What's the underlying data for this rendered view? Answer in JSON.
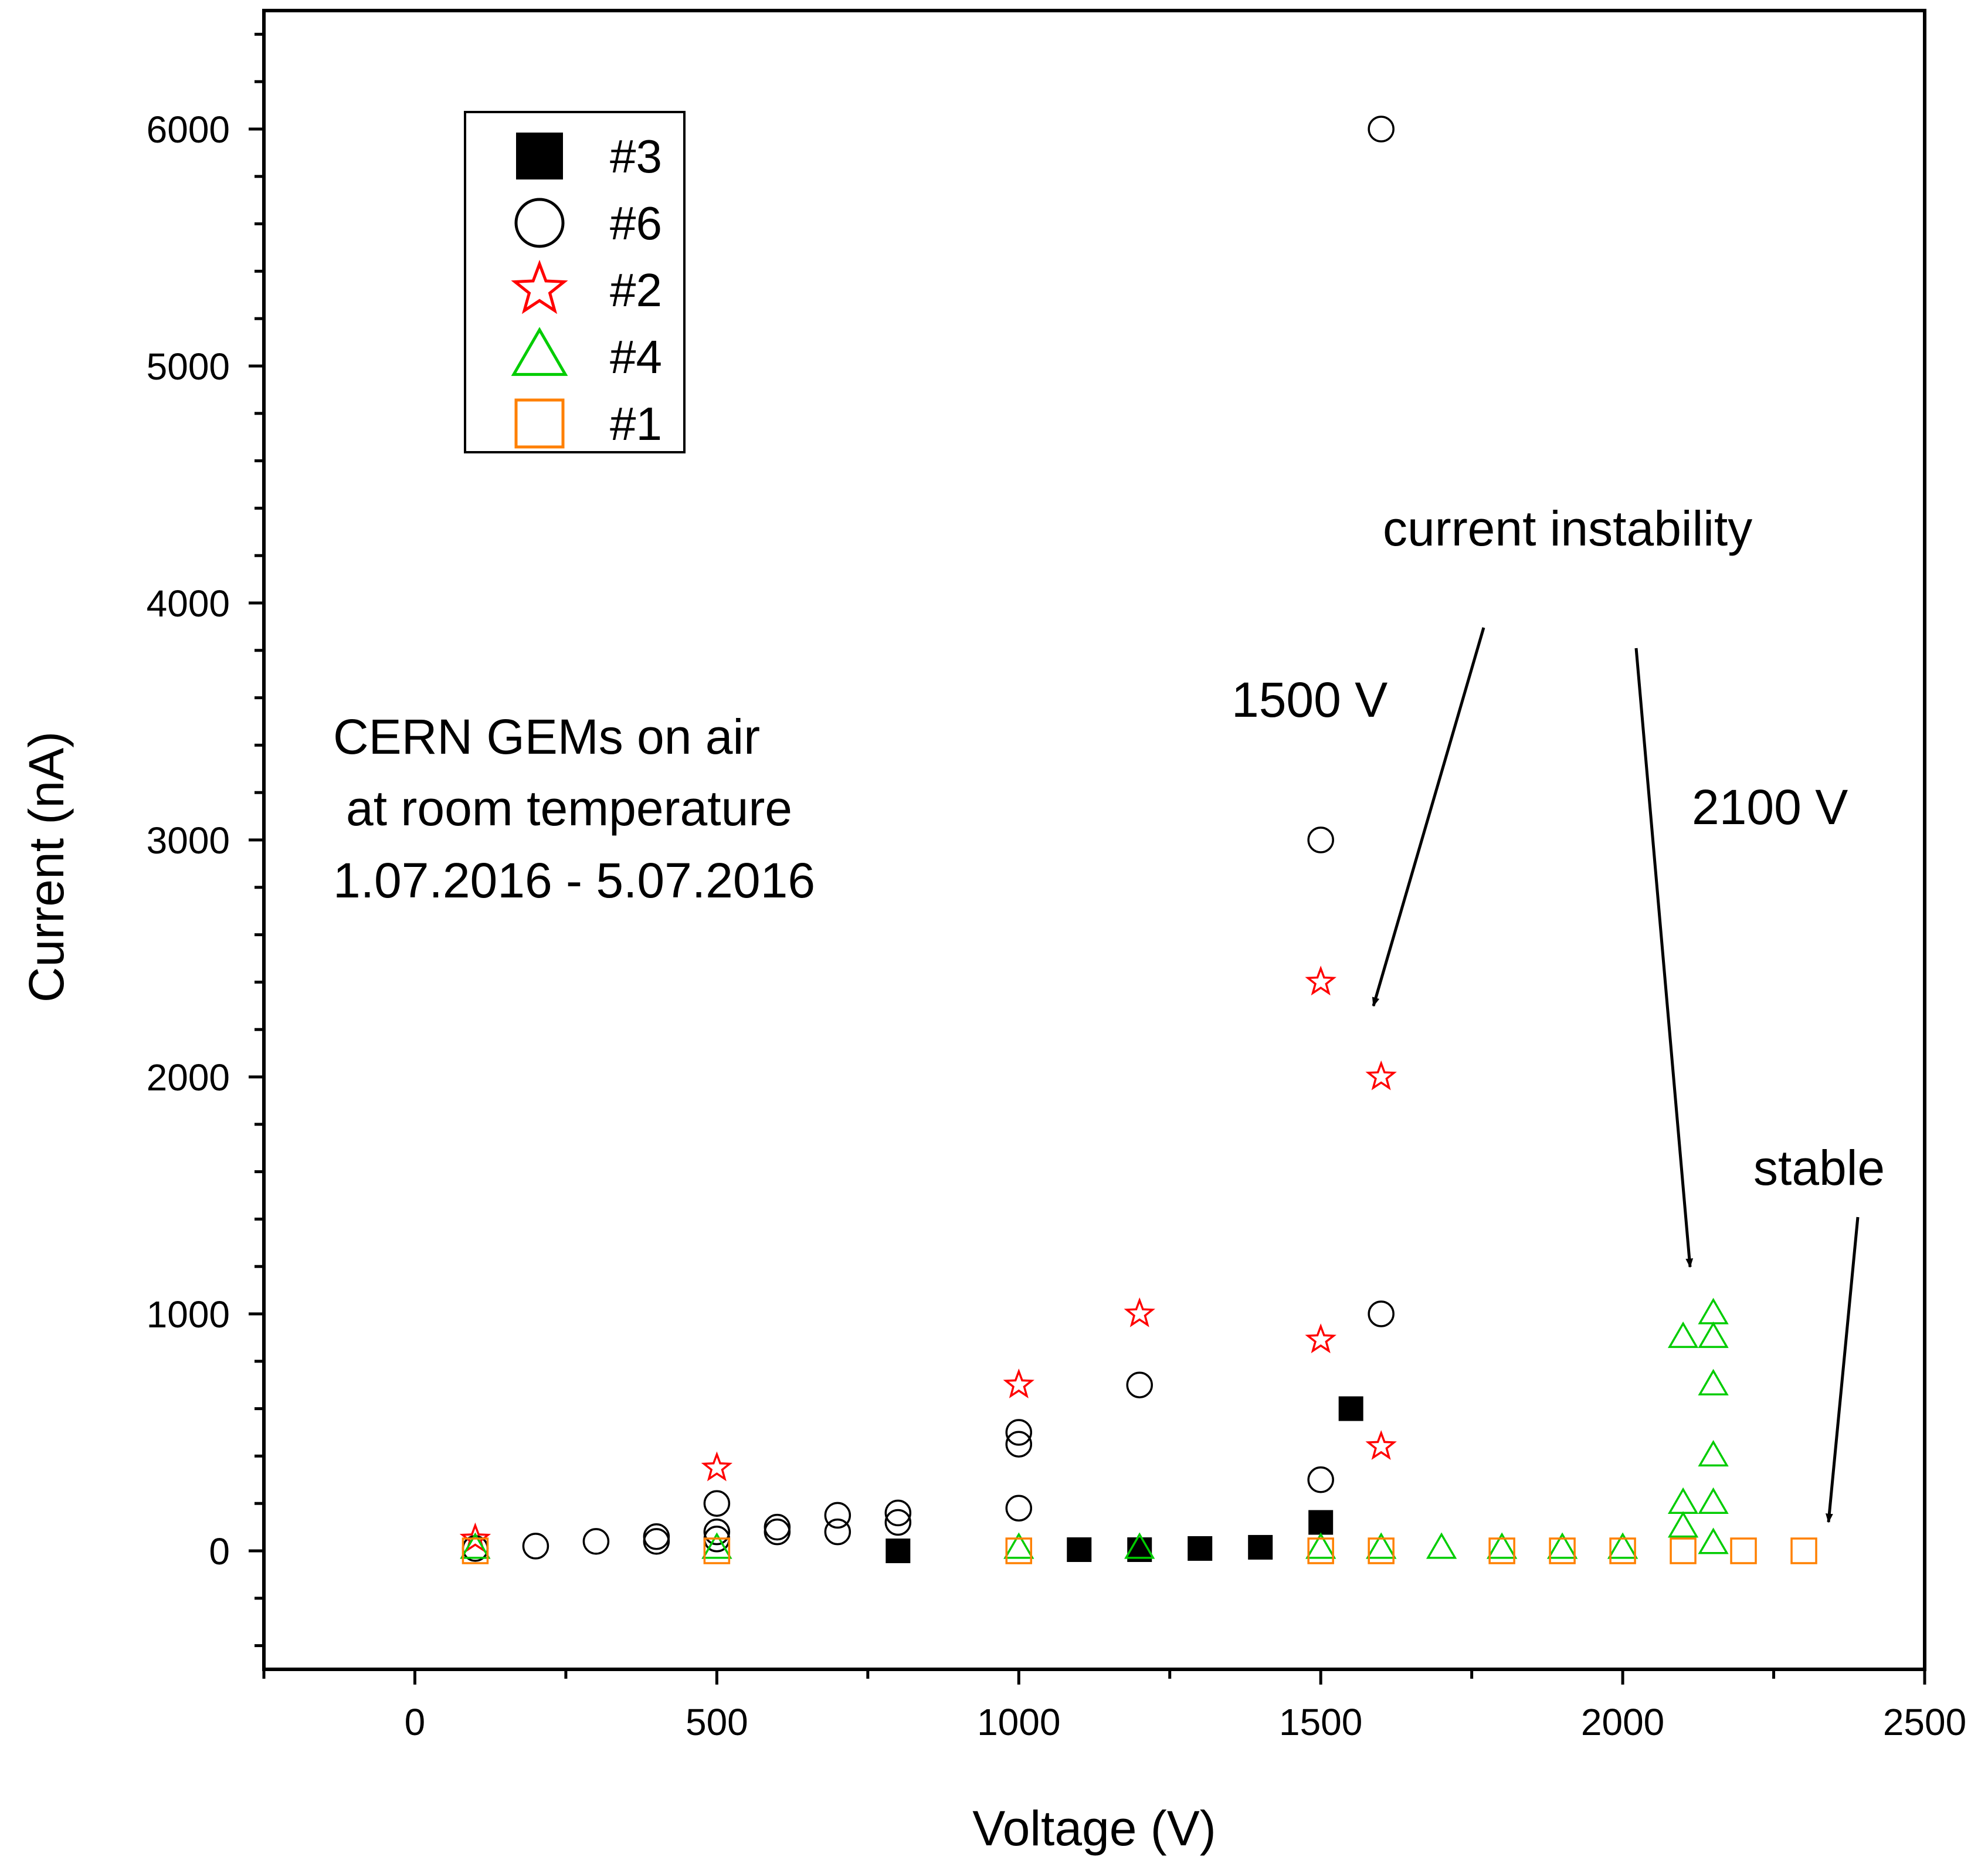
{
  "chart_data": {
    "type": "scatter",
    "xlabel": "Voltage (V)",
    "ylabel": "Current (nA)",
    "xlim": [
      -250,
      2500
    ],
    "ylim": [
      -500,
      6500
    ],
    "x_ticks": [
      0,
      500,
      1000,
      1500,
      2000,
      2500
    ],
    "y_ticks": [
      0,
      1000,
      2000,
      3000,
      4000,
      5000,
      6000
    ],
    "grid": false,
    "legend_position": "top-left",
    "annotations": [
      {
        "text": "CERN GEMs on air"
      },
      {
        "text": "at room temperature"
      },
      {
        "text": "1.07.2016 - 5.07.2016"
      },
      {
        "text": "current instability"
      },
      {
        "text": "1500 V"
      },
      {
        "text": "2100 V"
      },
      {
        "text": "stable"
      }
    ],
    "series": [
      {
        "name": "#3",
        "marker": "filled-square",
        "color": "#000000",
        "points": [
          [
            800,
            0
          ],
          [
            1100,
            5
          ],
          [
            1200,
            5
          ],
          [
            1300,
            10
          ],
          [
            1400,
            15
          ],
          [
            1500,
            120
          ],
          [
            1550,
            600
          ]
        ]
      },
      {
        "name": "#6",
        "marker": "open-circle",
        "color": "#000000",
        "points": [
          [
            100,
            10
          ],
          [
            200,
            20
          ],
          [
            300,
            40
          ],
          [
            400,
            40
          ],
          [
            400,
            60
          ],
          [
            500,
            50
          ],
          [
            500,
            80
          ],
          [
            500,
            200
          ],
          [
            600,
            80
          ],
          [
            600,
            100
          ],
          [
            700,
            80
          ],
          [
            700,
            150
          ],
          [
            800,
            120
          ],
          [
            800,
            160
          ],
          [
            1000,
            180
          ],
          [
            1000,
            450
          ],
          [
            1000,
            500
          ],
          [
            1200,
            700
          ],
          [
            1500,
            300
          ],
          [
            1500,
            3000
          ],
          [
            1600,
            1000
          ],
          [
            1600,
            6000
          ]
        ]
      },
      {
        "name": "#2",
        "marker": "open-star",
        "color": "#ff0000",
        "points": [
          [
            100,
            50
          ],
          [
            500,
            350
          ],
          [
            1000,
            700
          ],
          [
            1200,
            1000
          ],
          [
            1500,
            2400
          ],
          [
            1500,
            890
          ],
          [
            1600,
            2000
          ],
          [
            1600,
            440
          ]
        ]
      },
      {
        "name": "#4",
        "marker": "open-triangle",
        "color": "#00cc00",
        "points": [
          [
            100,
            10
          ],
          [
            500,
            10
          ],
          [
            1000,
            10
          ],
          [
            1200,
            10
          ],
          [
            1500,
            10
          ],
          [
            1600,
            10
          ],
          [
            1700,
            10
          ],
          [
            1800,
            10
          ],
          [
            1900,
            10
          ],
          [
            2000,
            10
          ],
          [
            2100,
            900
          ],
          [
            2100,
            200
          ],
          [
            2100,
            100
          ],
          [
            2150,
            1000
          ],
          [
            2150,
            900
          ],
          [
            2150,
            700
          ],
          [
            2150,
            400
          ],
          [
            2150,
            200
          ],
          [
            2150,
            30
          ]
        ]
      },
      {
        "name": "#1",
        "marker": "open-square",
        "color": "#ff8000",
        "points": [
          [
            100,
            0
          ],
          [
            500,
            0
          ],
          [
            1000,
            0
          ],
          [
            1500,
            0
          ],
          [
            1600,
            0
          ],
          [
            1800,
            0
          ],
          [
            1900,
            0
          ],
          [
            2000,
            0
          ],
          [
            2100,
            0
          ],
          [
            2200,
            0
          ],
          [
            2300,
            0
          ]
        ]
      }
    ]
  }
}
